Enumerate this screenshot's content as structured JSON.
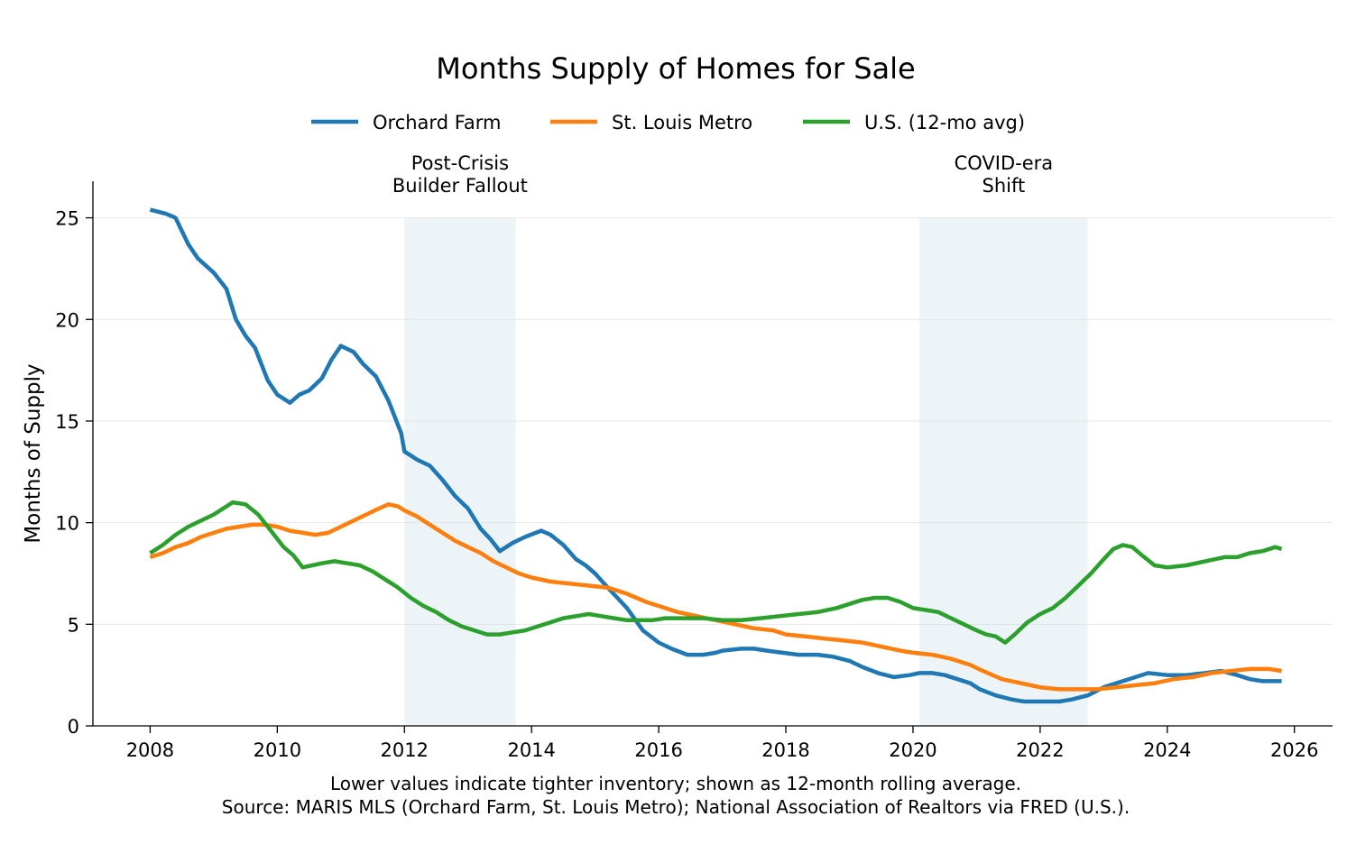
{
  "chart_data": {
    "type": "line",
    "title": "Months Supply of Homes for Sale",
    "xlabel": "",
    "ylabel": "Months of Supply",
    "xlim": [
      2007.1,
      2026.6
    ],
    "ylim": [
      0,
      26.8
    ],
    "x_ticks": [
      "2008",
      "2010",
      "2012",
      "2014",
      "2016",
      "2018",
      "2020",
      "2022",
      "2024",
      "2026"
    ],
    "x_tick_values": [
      2008,
      2010,
      2012,
      2014,
      2016,
      2018,
      2020,
      2022,
      2024,
      2026
    ],
    "y_ticks": [
      "0",
      "5",
      "10",
      "15",
      "20",
      "25"
    ],
    "y_tick_values": [
      0,
      5,
      10,
      15,
      20,
      25
    ],
    "grid": "horizontal",
    "legend_placement": "top-center",
    "shaded_regions": [
      {
        "label_lines": [
          "Post-Crisis",
          "Builder Fallout"
        ],
        "x_start": 2012.0,
        "x_end": 2013.75
      },
      {
        "label_lines": [
          "COVID-era",
          "Shift"
        ],
        "x_start": 2020.1,
        "x_end": 2022.75
      }
    ],
    "series": [
      {
        "name": "Orchard Farm",
        "color": "#1f77b4",
        "x": [
          2008.0,
          2008.25,
          2008.4,
          2008.6,
          2008.75,
          2009.0,
          2009.2,
          2009.35,
          2009.5,
          2009.65,
          2009.85,
          2010.0,
          2010.2,
          2010.35,
          2010.5,
          2010.7,
          2010.85,
          2011.0,
          2011.2,
          2011.35,
          2011.55,
          2011.75,
          2011.95,
          2012.0,
          2012.2,
          2012.4,
          2012.6,
          2012.8,
          2013.0,
          2013.2,
          2013.35,
          2013.5,
          2013.7,
          2013.9,
          2014.15,
          2014.3,
          2014.5,
          2014.7,
          2014.85,
          2015.0,
          2015.2,
          2015.35,
          2015.5,
          2015.75,
          2016.0,
          2016.2,
          2016.45,
          2016.7,
          2016.9,
          2017.0,
          2017.3,
          2017.5,
          2017.7,
          2017.95,
          2018.2,
          2018.5,
          2018.75,
          2019.0,
          2019.2,
          2019.45,
          2019.7,
          2019.95,
          2020.1,
          2020.3,
          2020.5,
          2020.7,
          2020.9,
          2021.05,
          2021.3,
          2021.55,
          2021.75,
          2022.0,
          2022.3,
          2022.5,
          2022.75,
          2023.0,
          2023.2,
          2023.5,
          2023.7,
          2024.0,
          2024.3,
          2024.6,
          2024.85,
          2025.1,
          2025.3,
          2025.5,
          2025.8
        ],
        "values": [
          25.4,
          25.2,
          25.0,
          23.7,
          23.0,
          22.3,
          21.5,
          20.0,
          19.2,
          18.6,
          17.0,
          16.3,
          15.9,
          16.3,
          16.5,
          17.1,
          18.0,
          18.7,
          18.4,
          17.8,
          17.2,
          16.0,
          14.4,
          13.5,
          13.1,
          12.8,
          12.1,
          11.3,
          10.7,
          9.7,
          9.2,
          8.6,
          9.0,
          9.3,
          9.6,
          9.4,
          8.9,
          8.2,
          7.9,
          7.5,
          6.8,
          6.3,
          5.8,
          4.7,
          4.1,
          3.8,
          3.5,
          3.5,
          3.6,
          3.7,
          3.8,
          3.8,
          3.7,
          3.6,
          3.5,
          3.5,
          3.4,
          3.2,
          2.9,
          2.6,
          2.4,
          2.5,
          2.6,
          2.6,
          2.5,
          2.3,
          2.1,
          1.8,
          1.5,
          1.3,
          1.2,
          1.2,
          1.2,
          1.3,
          1.5,
          1.9,
          2.1,
          2.4,
          2.6,
          2.5,
          2.5,
          2.6,
          2.7,
          2.5,
          2.3,
          2.2,
          2.2
        ]
      },
      {
        "name": "St. Louis Metro",
        "color": "#ff7f0e",
        "x": [
          2008.0,
          2008.2,
          2008.4,
          2008.6,
          2008.8,
          2009.0,
          2009.2,
          2009.4,
          2009.6,
          2009.8,
          2010.0,
          2010.2,
          2010.4,
          2010.6,
          2010.8,
          2011.0,
          2011.2,
          2011.4,
          2011.6,
          2011.75,
          2011.9,
          2012.0,
          2012.2,
          2012.4,
          2012.6,
          2012.8,
          2013.0,
          2013.2,
          2013.4,
          2013.6,
          2013.8,
          2014.0,
          2014.3,
          2014.6,
          2014.9,
          2015.2,
          2015.5,
          2015.8,
          2016.0,
          2016.3,
          2016.6,
          2016.9,
          2017.2,
          2017.5,
          2017.8,
          2018.0,
          2018.3,
          2018.6,
          2018.9,
          2019.2,
          2019.5,
          2019.8,
          2020.0,
          2020.3,
          2020.6,
          2020.9,
          2021.1,
          2021.4,
          2021.7,
          2022.0,
          2022.3,
          2022.6,
          2022.9,
          2023.2,
          2023.5,
          2023.8,
          2024.1,
          2024.4,
          2024.7,
          2025.0,
          2025.3,
          2025.6,
          2025.8
        ],
        "values": [
          8.3,
          8.5,
          8.8,
          9.0,
          9.3,
          9.5,
          9.7,
          9.8,
          9.9,
          9.9,
          9.8,
          9.6,
          9.5,
          9.4,
          9.5,
          9.8,
          10.1,
          10.4,
          10.7,
          10.9,
          10.8,
          10.6,
          10.3,
          9.9,
          9.5,
          9.1,
          8.8,
          8.5,
          8.1,
          7.8,
          7.5,
          7.3,
          7.1,
          7.0,
          6.9,
          6.8,
          6.5,
          6.1,
          5.9,
          5.6,
          5.4,
          5.2,
          5.0,
          4.8,
          4.7,
          4.5,
          4.4,
          4.3,
          4.2,
          4.1,
          3.9,
          3.7,
          3.6,
          3.5,
          3.3,
          3.0,
          2.7,
          2.3,
          2.1,
          1.9,
          1.8,
          1.8,
          1.8,
          1.9,
          2.0,
          2.1,
          2.3,
          2.4,
          2.6,
          2.7,
          2.8,
          2.8,
          2.7
        ]
      },
      {
        "name": "U.S. (12-mo avg)",
        "color": "#2ca02c",
        "x": [
          2008.0,
          2008.2,
          2008.4,
          2008.6,
          2008.8,
          2009.0,
          2009.15,
          2009.3,
          2009.5,
          2009.7,
          2009.9,
          2010.1,
          2010.25,
          2010.4,
          2010.55,
          2010.7,
          2010.9,
          2011.1,
          2011.3,
          2011.5,
          2011.7,
          2011.9,
          2012.1,
          2012.3,
          2012.5,
          2012.7,
          2012.9,
          2013.1,
          2013.3,
          2013.5,
          2013.7,
          2013.9,
          2014.1,
          2014.3,
          2014.5,
          2014.7,
          2014.9,
          2015.1,
          2015.3,
          2015.5,
          2015.7,
          2015.9,
          2016.1,
          2016.4,
          2016.7,
          2017.0,
          2017.3,
          2017.6,
          2017.9,
          2018.2,
          2018.5,
          2018.8,
          2019.0,
          2019.2,
          2019.4,
          2019.6,
          2019.8,
          2020.0,
          2020.2,
          2020.4,
          2020.6,
          2020.8,
          2021.0,
          2021.15,
          2021.3,
          2021.45,
          2021.6,
          2021.8,
          2022.0,
          2022.2,
          2022.4,
          2022.6,
          2022.8,
          2023.0,
          2023.15,
          2023.3,
          2023.45,
          2023.6,
          2023.8,
          2024.0,
          2024.3,
          2024.6,
          2024.9,
          2025.1,
          2025.3,
          2025.5,
          2025.7,
          2025.8
        ],
        "values": [
          8.5,
          8.9,
          9.4,
          9.8,
          10.1,
          10.4,
          10.7,
          11.0,
          10.9,
          10.4,
          9.6,
          8.8,
          8.4,
          7.8,
          7.9,
          8.0,
          8.1,
          8.0,
          7.9,
          7.6,
          7.2,
          6.8,
          6.3,
          5.9,
          5.6,
          5.2,
          4.9,
          4.7,
          4.5,
          4.5,
          4.6,
          4.7,
          4.9,
          5.1,
          5.3,
          5.4,
          5.5,
          5.4,
          5.3,
          5.2,
          5.2,
          5.2,
          5.3,
          5.3,
          5.3,
          5.2,
          5.2,
          5.3,
          5.4,
          5.5,
          5.6,
          5.8,
          6.0,
          6.2,
          6.3,
          6.3,
          6.1,
          5.8,
          5.7,
          5.6,
          5.3,
          5.0,
          4.7,
          4.5,
          4.4,
          4.1,
          4.5,
          5.1,
          5.5,
          5.8,
          6.3,
          6.9,
          7.5,
          8.2,
          8.7,
          8.9,
          8.8,
          8.4,
          7.9,
          7.8,
          7.9,
          8.1,
          8.3,
          8.3,
          8.5,
          8.6,
          8.8,
          8.7
        ]
      }
    ],
    "annotations": [
      "Lower values indicate tighter inventory; shown as 12-month rolling average.",
      "Source: MARIS MLS (Orchard Farm, St. Louis Metro); National Association of Realtors via FRED (U.S.)."
    ]
  }
}
